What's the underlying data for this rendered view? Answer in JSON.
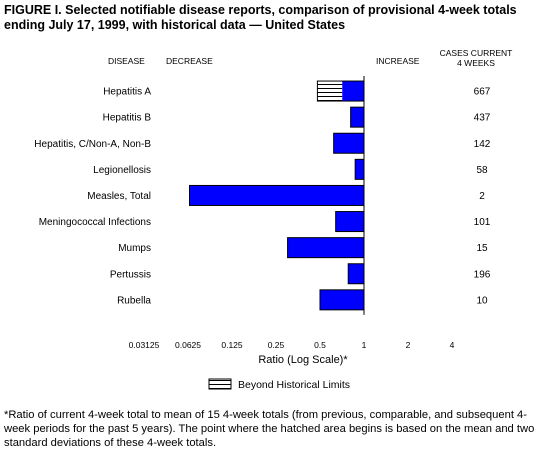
{
  "title_lines": [
    "FIGURE I. Selected notifiable disease reports, comparison of provisional 4-week totals",
    "ending July 17, 1999, with historical data — United States"
  ],
  "headers": {
    "disease": "DISEASE",
    "decrease": "DECREASE",
    "increase": "INCREASE",
    "cases_line1": "CASES CURRENT",
    "cases_line2": "4 WEEKS"
  },
  "legend_label": "Beyond Historical Limits",
  "footnote": "*Ratio of current 4-week total to mean of 15 4-week totals (from previous, comparable, and subsequent 4-week periods for the past 5 years). The point where the hatched area begins is based on the mean and two standard deviations of these 4-week totals.",
  "colors": {
    "bar": "#0000ff",
    "hatch": "#000000"
  },
  "chart_data": {
    "type": "bar",
    "orientation": "horizontal",
    "scale": "log2",
    "baseline": 1,
    "xlabel": "Ratio (Log Scale)*",
    "ylabel": "",
    "xlim": [
      0.03125,
      4
    ],
    "xticks": [
      "0.03125",
      "0.0625",
      "0.125",
      "0.25",
      "0.5",
      "1",
      "2",
      "4"
    ],
    "xtick_values": [
      0.03125,
      0.0625,
      0.125,
      0.25,
      0.5,
      1,
      2,
      4
    ],
    "categories": [
      "Hepatitis A",
      "Hepatitis B",
      "Hepatitis, C/Non-A, Non-B",
      "Legionellosis",
      "Measles, Total",
      "Meningococcal Infections",
      "Mumps",
      "Pertussis",
      "Rubella"
    ],
    "values": [
      0.48,
      0.81,
      0.62,
      0.87,
      0.064,
      0.64,
      0.3,
      0.78,
      0.5
    ],
    "hatch_start": [
      0.71,
      null,
      null,
      null,
      null,
      null,
      null,
      null,
      null
    ],
    "cases_current_4_weeks": [
      "667",
      "437",
      "142",
      "58",
      "2",
      "101",
      "15",
      "196",
      "10"
    ]
  }
}
